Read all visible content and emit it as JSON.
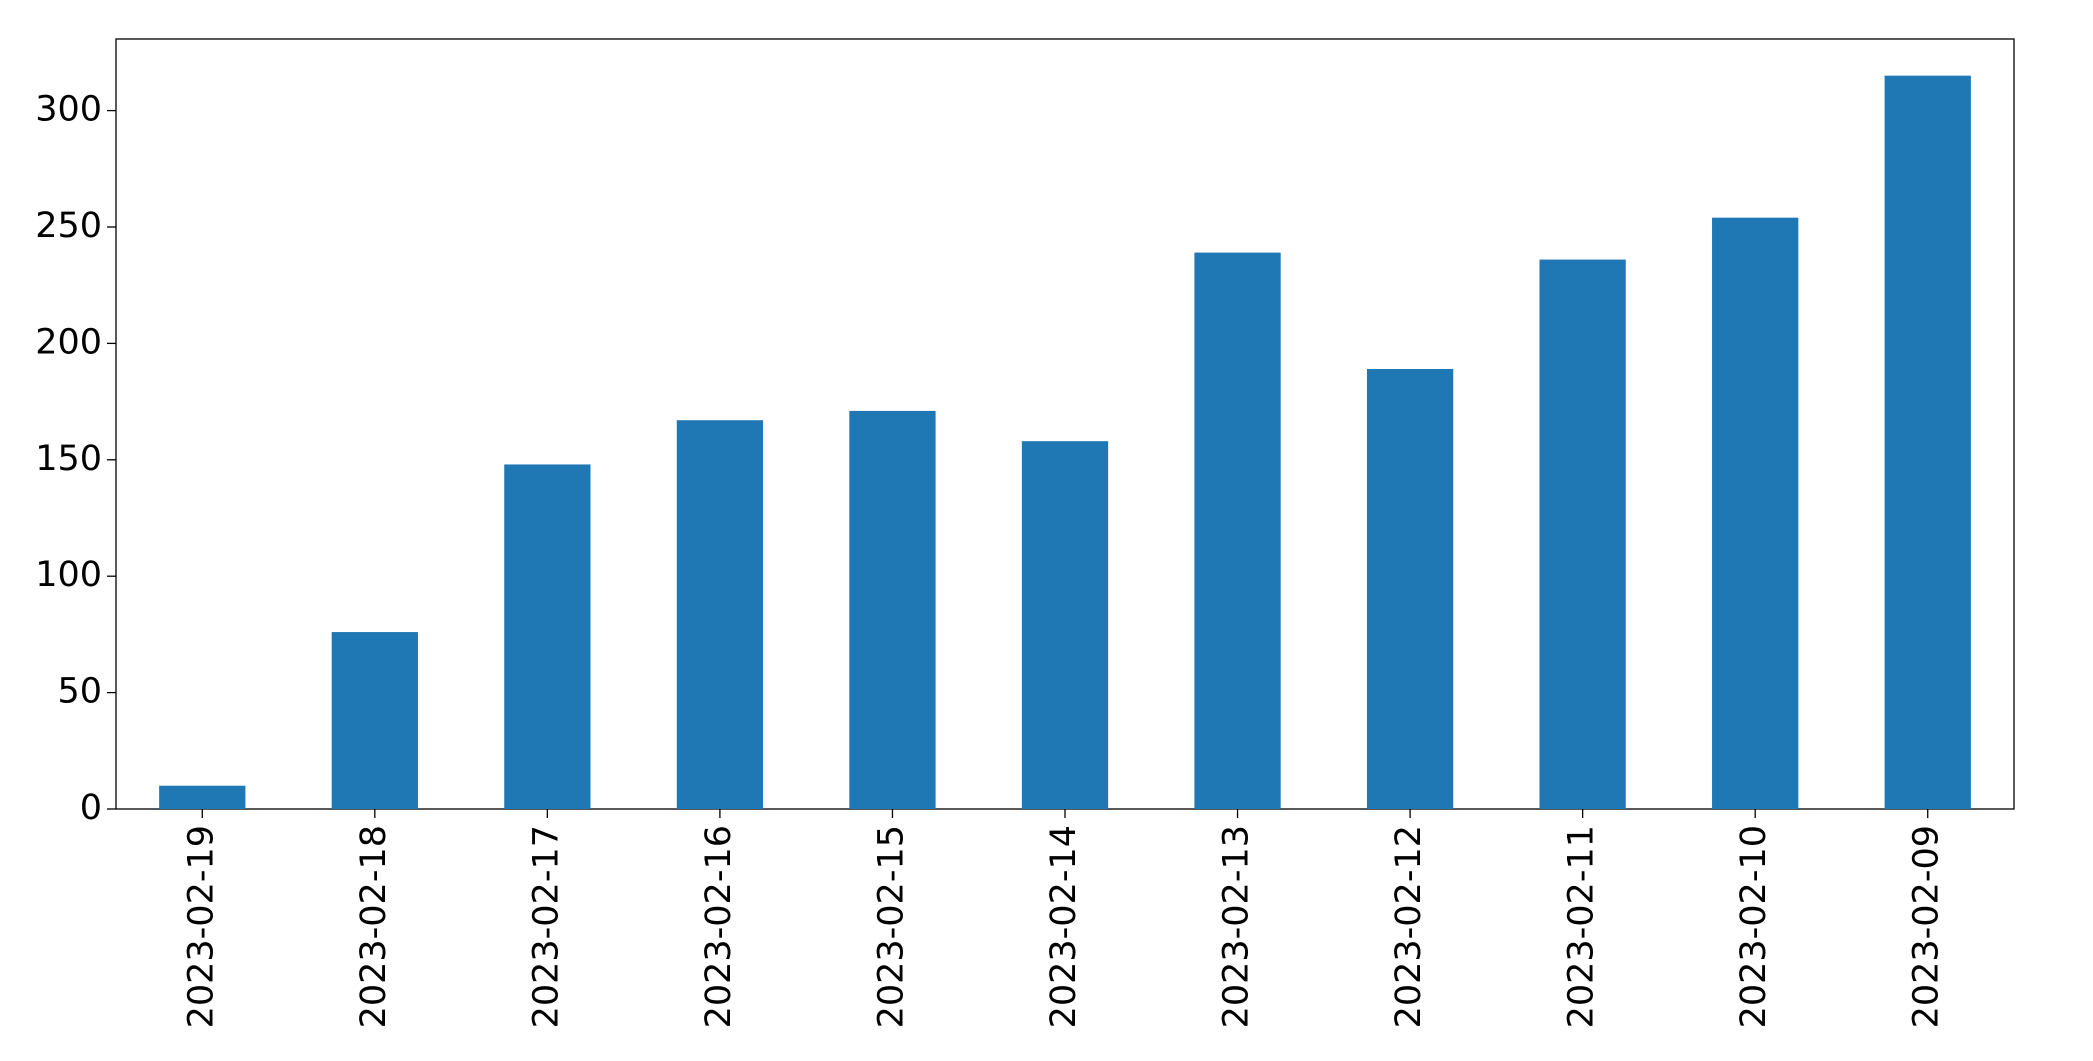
{
  "chart_data": {
    "type": "bar",
    "categories": [
      "2023-02-19",
      "2023-02-18",
      "2023-02-17",
      "2023-02-16",
      "2023-02-15",
      "2023-02-14",
      "2023-02-13",
      "2023-02-12",
      "2023-02-11",
      "2023-02-10",
      "2023-02-09"
    ],
    "values": [
      10,
      76,
      148,
      167,
      171,
      158,
      239,
      189,
      236,
      254,
      315
    ],
    "color": "#1f77b4",
    "ylim": [
      0,
      330.75
    ],
    "yticks": [
      0,
      50,
      100,
      150,
      200,
      250,
      300
    ],
    "grid": false
  }
}
